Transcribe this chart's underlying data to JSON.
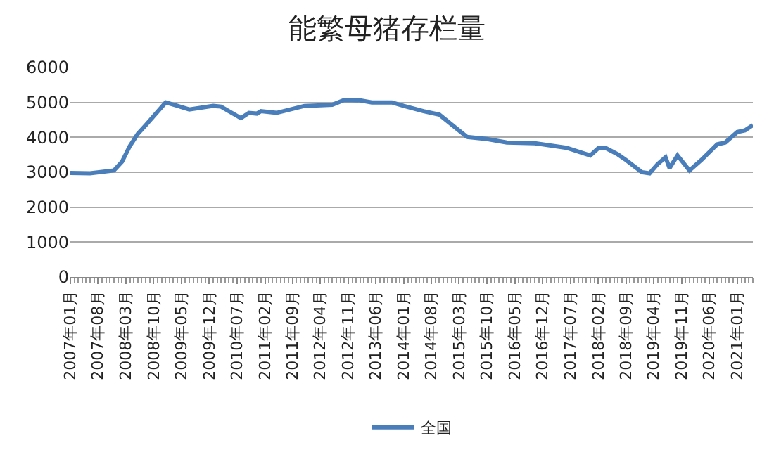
{
  "chart_data": {
    "type": "line",
    "title": "能繁母猪存栏量",
    "series": [
      {
        "name": "全国",
        "color": "#4a7ebb",
        "x": [
          "2007-01",
          "2007-06",
          "2007-12",
          "2008-02",
          "2008-04",
          "2008-06",
          "2008-08",
          "2009-01",
          "2009-07",
          "2010-01",
          "2010-03",
          "2010-08",
          "2010-10",
          "2010-12",
          "2011-01",
          "2011-05",
          "2011-12",
          "2012-07",
          "2012-10",
          "2013-02",
          "2013-05",
          "2013-10",
          "2014-01",
          "2014-06",
          "2014-10",
          "2015-05",
          "2015-10",
          "2016-03",
          "2016-10",
          "2017-06",
          "2017-12",
          "2018-02",
          "2018-04",
          "2018-07",
          "2018-09",
          "2019-01",
          "2019-03",
          "2019-05",
          "2019-07",
          "2019-08",
          "2019-10",
          "2020-01",
          "2020-04",
          "2020-08",
          "2020-10",
          "2021-01",
          "2021-03",
          "2021-05"
        ],
        "values": [
          2980,
          2970,
          3050,
          3300,
          3750,
          4100,
          4350,
          5000,
          4800,
          4900,
          4880,
          4550,
          4700,
          4680,
          4750,
          4700,
          4900,
          4930,
          5070,
          5060,
          5000,
          5000,
          4900,
          4750,
          4650,
          4010,
          3950,
          3850,
          3830,
          3700,
          3480,
          3690,
          3690,
          3510,
          3350,
          3000,
          2970,
          3230,
          3430,
          3120,
          3480,
          3050,
          3350,
          3800,
          3850,
          4150,
          4200,
          4350
        ]
      }
    ],
    "xlim": [
      "2007-01",
      "2021-05"
    ],
    "xticks": [
      {
        "value": "2007-01",
        "label": "2007年01月"
      },
      {
        "value": "2007-08",
        "label": "2007年08月"
      },
      {
        "value": "2008-03",
        "label": "2008年03月"
      },
      {
        "value": "2008-10",
        "label": "2008年10月"
      },
      {
        "value": "2009-05",
        "label": "2009年05月"
      },
      {
        "value": "2009-12",
        "label": "2009年12月"
      },
      {
        "value": "2010-07",
        "label": "2010年07月"
      },
      {
        "value": "2011-02",
        "label": "2011年02月"
      },
      {
        "value": "2011-09",
        "label": "2011年09月"
      },
      {
        "value": "2012-04",
        "label": "2012年04月"
      },
      {
        "value": "2012-11",
        "label": "2012年11月"
      },
      {
        "value": "2013-06",
        "label": "2013年06月"
      },
      {
        "value": "2014-01",
        "label": "2014年01月"
      },
      {
        "value": "2014-08",
        "label": "2014年08月"
      },
      {
        "value": "2015-03",
        "label": "2015年03月"
      },
      {
        "value": "2015-10",
        "label": "2015年10月"
      },
      {
        "value": "2016-05",
        "label": "2016年05月"
      },
      {
        "value": "2016-12",
        "label": "2016年12月"
      },
      {
        "value": "2017-07",
        "label": "2017年07月"
      },
      {
        "value": "2018-02",
        "label": "2018年02月"
      },
      {
        "value": "2018-09",
        "label": "2018年09月"
      },
      {
        "value": "2019-04",
        "label": "2019年04月"
      },
      {
        "value": "2019-11",
        "label": "2019年11月"
      },
      {
        "value": "2020-06",
        "label": "2020年06月"
      },
      {
        "value": "2021-01",
        "label": "2021年01月"
      }
    ],
    "ylim": [
      0,
      6000
    ],
    "yticks": [
      0,
      1000,
      2000,
      3000,
      4000,
      5000,
      6000
    ],
    "grid": "y",
    "legend": "bottom",
    "marker": "none",
    "line_style": "solid"
  }
}
